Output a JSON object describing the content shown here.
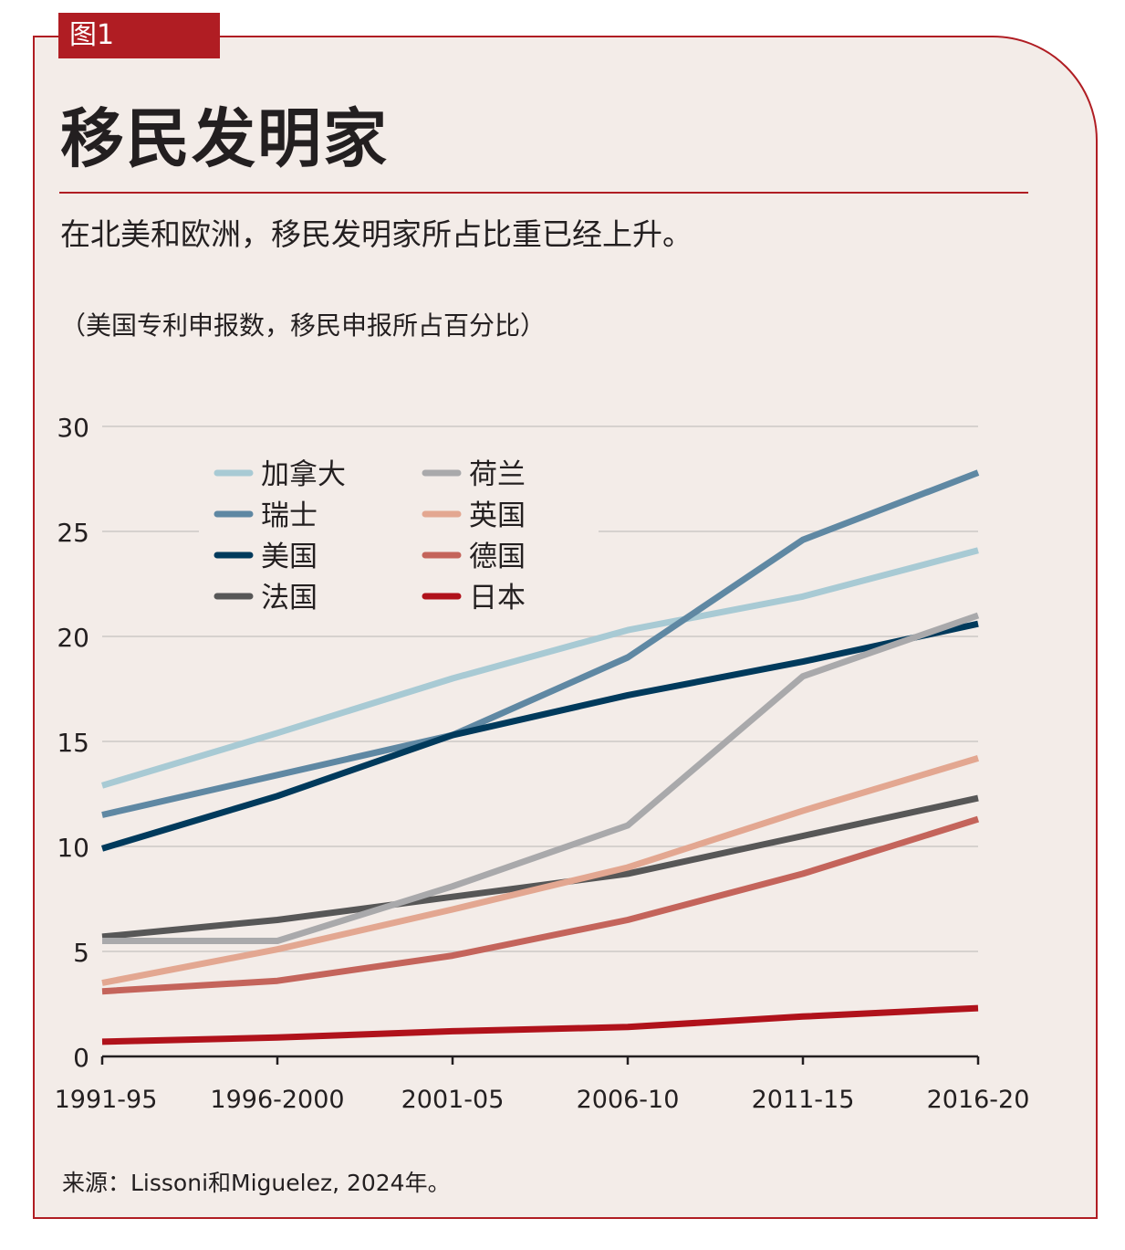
{
  "figure_tag": "图1",
  "title": "移民发明家",
  "subtitle": "在北美和欧洲，移民发明家所占比重已经上升。",
  "unit_note": "（美国专利申报数，移民申报所占百分比）",
  "source": "来源：Lissoni和Miguelez, 2024年。",
  "colors": {
    "accent": "#b01d23",
    "background": "#f3ece8"
  },
  "chart_data": {
    "type": "line",
    "categories": [
      "1991-95",
      "1996-2000",
      "2001-05",
      "2006-10",
      "2011-15",
      "2016-20"
    ],
    "ylim": [
      0,
      30
    ],
    "yticks": [
      0,
      5,
      10,
      15,
      20,
      25,
      30
    ],
    "grid": true,
    "legend_placement": "top-left",
    "series": [
      {
        "name": "加拿大",
        "color": "#a8cad4",
        "values": [
          12.9,
          15.4,
          18.0,
          20.3,
          21.9,
          24.1
        ]
      },
      {
        "name": "瑞士",
        "color": "#5f88a3",
        "values": [
          11.5,
          13.4,
          15.3,
          19.0,
          24.6,
          27.8
        ]
      },
      {
        "name": "美国",
        "color": "#003a5c",
        "values": [
          9.9,
          12.4,
          15.3,
          17.2,
          18.8,
          20.6
        ]
      },
      {
        "name": "法国",
        "color": "#575757",
        "values": [
          5.7,
          6.5,
          7.6,
          8.7,
          10.5,
          12.3
        ]
      },
      {
        "name": "荷兰",
        "color": "#a9a9ab",
        "values": [
          5.5,
          5.5,
          8.1,
          11.0,
          18.1,
          21.0
        ]
      },
      {
        "name": "英国",
        "color": "#e3a791",
        "values": [
          3.5,
          5.1,
          7.0,
          9.0,
          11.7,
          14.2
        ]
      },
      {
        "name": "德国",
        "color": "#c4645b",
        "values": [
          3.1,
          3.6,
          4.8,
          6.5,
          8.7,
          11.3
        ]
      },
      {
        "name": "日本",
        "color": "#b0121b",
        "values": [
          0.7,
          0.9,
          1.2,
          1.4,
          1.9,
          2.3
        ]
      }
    ]
  }
}
